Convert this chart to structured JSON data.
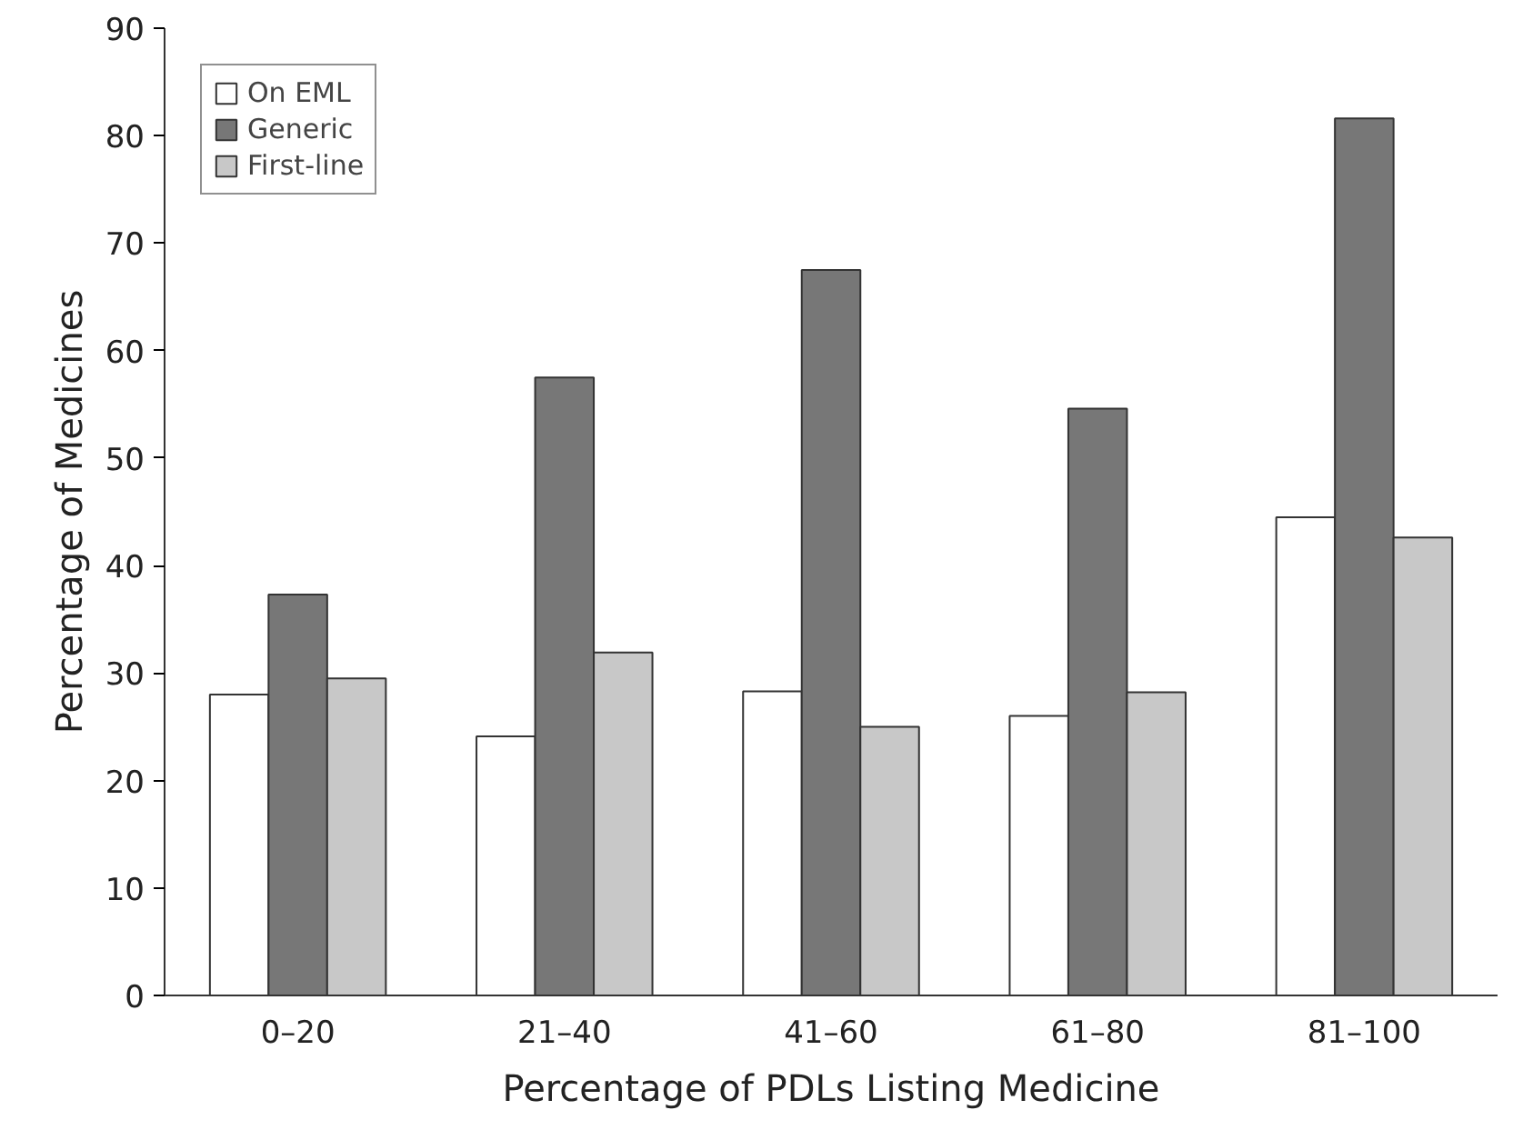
{
  "chart_data": {
    "type": "bar",
    "xlabel": "Percentage of PDLs Listing Medicine",
    "ylabel": "Percentage of Medicines",
    "categories": [
      "0–20",
      "21–40",
      "41–60",
      "61–80",
      "81–100"
    ],
    "series": [
      {
        "name": "On EML",
        "color": "#ffffff",
        "values": [
          28.0,
          24.1,
          28.3,
          26.0,
          44.5
        ]
      },
      {
        "name": "Generic",
        "color": "#777777",
        "values": [
          37.3,
          57.5,
          67.5,
          54.6,
          81.6
        ]
      },
      {
        "name": "First-line",
        "color": "#c8c8c8",
        "values": [
          29.5,
          31.9,
          25.0,
          28.2,
          42.6
        ]
      }
    ],
    "ylim": [
      0,
      90
    ],
    "yticks": [
      0,
      10,
      20,
      30,
      40,
      50,
      60,
      70,
      80,
      90
    ],
    "grid": false,
    "legend": "top left"
  }
}
